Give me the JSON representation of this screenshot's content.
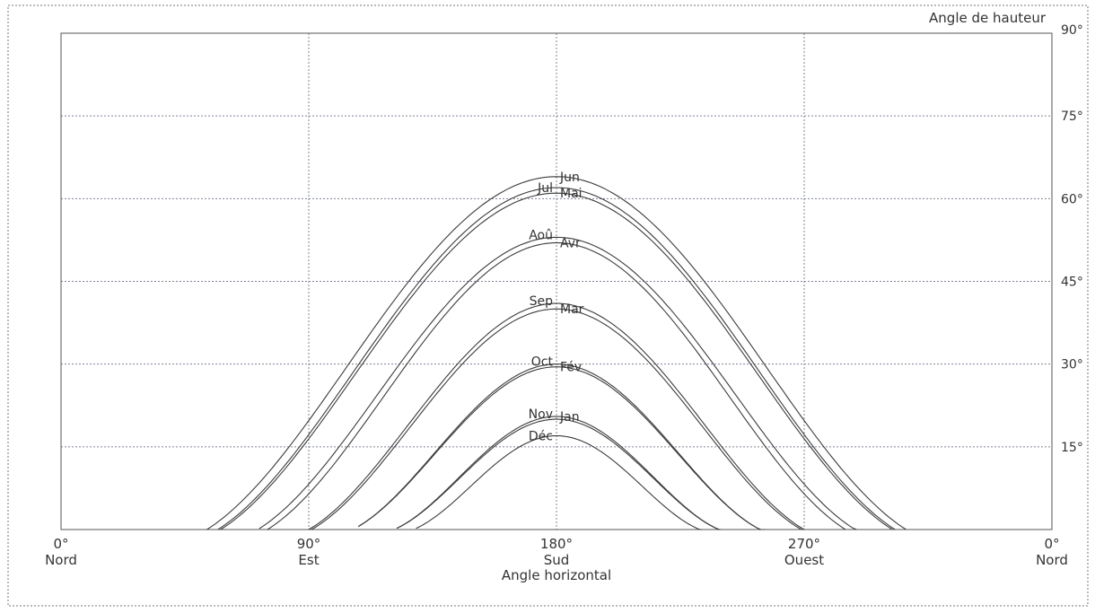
{
  "chart_data": {
    "type": "line",
    "xlabel": "Angle horizontal",
    "ylabel": "Angle de hauteur",
    "xlim": [
      0,
      360
    ],
    "ylim": [
      0,
      90
    ],
    "grid": true,
    "x_ticks": [
      {
        "value": 0,
        "degree": "0°",
        "label": "Nord"
      },
      {
        "value": 90,
        "degree": "90°",
        "label": "Est"
      },
      {
        "value": 180,
        "degree": "180°",
        "label": "Sud"
      },
      {
        "value": 270,
        "degree": "270°",
        "label": "Ouest"
      },
      {
        "value": 360,
        "degree": "0°",
        "label": "Nord"
      }
    ],
    "y_ticks": [
      {
        "value": 15,
        "label": "15°"
      },
      {
        "value": 30,
        "label": "30°"
      },
      {
        "value": 45,
        "label": "45°"
      },
      {
        "value": 60,
        "label": "60°"
      },
      {
        "value": 75,
        "label": "75°"
      },
      {
        "value": 90,
        "label": "90°"
      }
    ],
    "series": [
      {
        "name": "Jun",
        "peak": 64,
        "rise": 53,
        "set": 307,
        "label_side": "right",
        "label_y": 64
      },
      {
        "name": "Jul",
        "peak": 62,
        "rise": 57,
        "set": 303,
        "label_side": "left",
        "label_y": 62
      },
      {
        "name": "Mai",
        "peak": 61,
        "rise": 58,
        "set": 302,
        "label_side": "right",
        "label_y": 61
      },
      {
        "name": "Aoû",
        "peak": 53,
        "rise": 72,
        "set": 289,
        "label_side": "left",
        "label_y": 53.5
      },
      {
        "name": "Avr",
        "peak": 52,
        "rise": 75,
        "set": 285,
        "label_side": "right",
        "label_y": 52
      },
      {
        "name": "Sep",
        "peak": 41,
        "rise": 90,
        "set": 270,
        "label_side": "left",
        "label_y": 41.5
      },
      {
        "name": "Mar",
        "peak": 40,
        "rise": 91,
        "set": 269,
        "label_side": "right",
        "label_y": 40
      },
      {
        "name": "Oct",
        "peak": 30,
        "rise": 108,
        "set": 256,
        "label_side": "left",
        "label_y": 30.5
      },
      {
        "name": "Fév",
        "peak": 29.5,
        "rise": 108,
        "set": 256,
        "label_side": "right",
        "label_y": 29.5
      },
      {
        "name": "Nov",
        "peak": 20.5,
        "rise": 122,
        "set": 240,
        "label_side": "left",
        "label_y": 21
      },
      {
        "name": "Jan",
        "peak": 20,
        "rise": 122,
        "set": 240,
        "label_side": "right",
        "label_y": 20.5
      },
      {
        "name": "Déc",
        "peak": 17,
        "rise": 129,
        "set": 233,
        "label_side": "left",
        "label_y": 17
      }
    ]
  }
}
